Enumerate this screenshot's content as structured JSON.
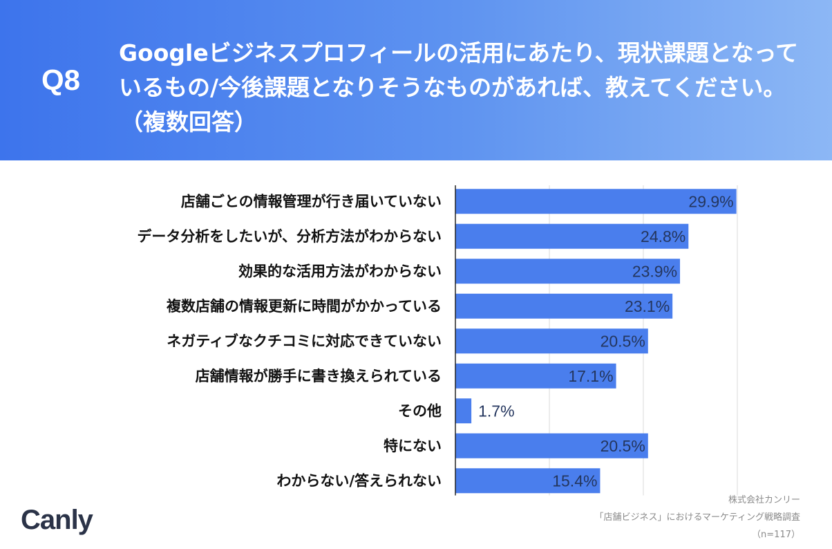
{
  "header": {
    "question_no": "Q8",
    "question_lines": [
      "Googleビジネスプロフィールの活用にあたり、現状課題となって",
      "いるもの/今後課題となりそうなものがあれば、教えてください。",
      "（複数回答）"
    ]
  },
  "chart_data": {
    "type": "bar",
    "orientation": "horizontal",
    "categories": [
      "店舗ごとの情報管理が行き届いていない",
      "データ分析をしたいが、分析方法がわからない",
      "効果的な活用方法がわからない",
      "複数店舗の情報更新に時間がかかっている",
      "ネガティブなクチコミに対応できていない",
      "店舗情報が勝手に書き換えられている",
      "その他",
      "特にない",
      "わからない/答えられない"
    ],
    "values": [
      29.9,
      24.8,
      23.9,
      23.1,
      20.5,
      17.1,
      1.7,
      20.5,
      15.4
    ],
    "value_labels": [
      "29.9%",
      "24.8%",
      "23.9%",
      "23.1%",
      "20.5%",
      "17.1%",
      "1.7%",
      "20.5%",
      "15.4%"
    ],
    "xlim": [
      0,
      30
    ],
    "grid": true,
    "bar_color": "#4a7eed"
  },
  "footer": {
    "logo": "Canly",
    "company": "株式会社カンリー",
    "survey": "「店舗ビジネス」におけるマーケティング戦略調査",
    "sample": "（n=117）"
  }
}
